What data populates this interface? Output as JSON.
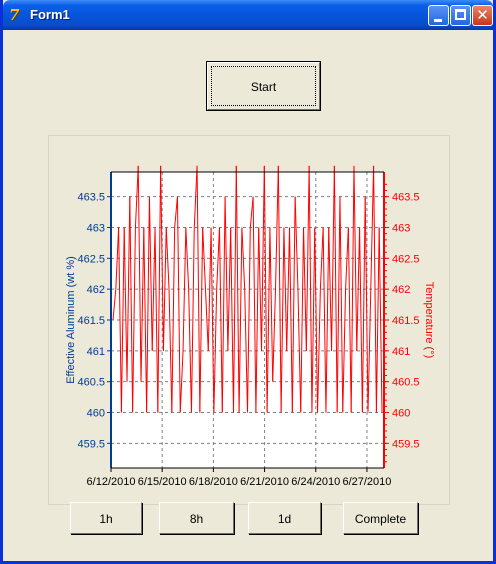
{
  "window": {
    "title": "Form1"
  },
  "titlebar": {
    "minimize": "minimize",
    "maximize": "maximize",
    "close": "close"
  },
  "start_button": {
    "label": "Start"
  },
  "range_buttons": [
    {
      "label": "1h"
    },
    {
      "label": "8h"
    },
    {
      "label": "1d"
    },
    {
      "label": "Complete"
    }
  ],
  "colors": {
    "left_axis": "#003c96",
    "right_axis": "#ff0000",
    "series": "#ff0000",
    "grid": "#808080"
  },
  "chart_data": {
    "type": "line",
    "title": "",
    "y_left_label": "Effective Aluminum (wt %)",
    "y_right_label": "Temperature (°)",
    "x_tick_labels": [
      "6/12/2010",
      "6/15/2010",
      "6/18/2010",
      "6/21/2010",
      "6/24/2010",
      "6/27/2010"
    ],
    "x_ticks": [
      "2010-06-12",
      "2010-06-15",
      "2010-06-18",
      "2010-06-21",
      "2010-06-24",
      "2010-06-27"
    ],
    "x_range": [
      "2010-06-12",
      "2010-06-28"
    ],
    "y_left_ticks": [
      "463.5",
      "463",
      "462.5",
      "462",
      "461.5",
      "461",
      "460.5",
      "460",
      "459.5"
    ],
    "y_right_ticks": [
      "463.5",
      "463",
      "462.5",
      "462",
      "461.5",
      "461",
      "460.5",
      "460",
      "459.5"
    ],
    "ylim": [
      459.1,
      463.9
    ],
    "grid": true,
    "series": [
      {
        "x": [
          "2010-06-12",
          "2010-06-12",
          "2010-06-12",
          "2010-06-12",
          "2010-06-12",
          "2010-06-13",
          "2010-06-13",
          "2010-06-13",
          "2010-06-13",
          "2010-06-13",
          "2010-06-13",
          "2010-06-13",
          "2010-06-14",
          "2010-06-14",
          "2010-06-14",
          "2010-06-14",
          "2010-06-14",
          "2010-06-14",
          "2010-06-15",
          "2010-06-15",
          "2010-06-15",
          "2010-06-15",
          "2010-06-15",
          "2010-06-15",
          "2010-06-16",
          "2010-06-16",
          "2010-06-16",
          "2010-06-16",
          "2010-06-16",
          "2010-06-16",
          "2010-06-16",
          "2010-06-17",
          "2010-06-17",
          "2010-06-17",
          "2010-06-17",
          "2010-06-17",
          "2010-06-17",
          "2010-06-18",
          "2010-06-18",
          "2010-06-18",
          "2010-06-18",
          "2010-06-18",
          "2010-06-18",
          "2010-06-19",
          "2010-06-19",
          "2010-06-19",
          "2010-06-19",
          "2010-06-19",
          "2010-06-19",
          "2010-06-20",
          "2010-06-20",
          "2010-06-20",
          "2010-06-20",
          "2010-06-20",
          "2010-06-20",
          "2010-06-21",
          "2010-06-21",
          "2010-06-21",
          "2010-06-21",
          "2010-06-21",
          "2010-06-21",
          "2010-06-22",
          "2010-06-22",
          "2010-06-22",
          "2010-06-22",
          "2010-06-22",
          "2010-06-22",
          "2010-06-23",
          "2010-06-23",
          "2010-06-23",
          "2010-06-23",
          "2010-06-23",
          "2010-06-23",
          "2010-06-24",
          "2010-06-24",
          "2010-06-24",
          "2010-06-24",
          "2010-06-24",
          "2010-06-24",
          "2010-06-25",
          "2010-06-25",
          "2010-06-25",
          "2010-06-25",
          "2010-06-25",
          "2010-06-25",
          "2010-06-26",
          "2010-06-26",
          "2010-06-26",
          "2010-06-26",
          "2010-06-26",
          "2010-06-26",
          "2010-06-27",
          "2010-06-27",
          "2010-06-27",
          "2010-06-27",
          "2010-06-27",
          "2010-06-28"
        ],
        "y": [
          461.5,
          462,
          463,
          460,
          463,
          460.5,
          463.5,
          460,
          463,
          464,
          460.5,
          463,
          460,
          463.5,
          461,
          463,
          460,
          464,
          461,
          463,
          462,
          460,
          463,
          463.5,
          460,
          461,
          463,
          462,
          460,
          463,
          464,
          460,
          463,
          462,
          461,
          463,
          460,
          462,
          463,
          460,
          463.5,
          461,
          463,
          460,
          464,
          460,
          463,
          462,
          460,
          463,
          463.5,
          460,
          463,
          461,
          464,
          460,
          463,
          460.5,
          462,
          464,
          460,
          463,
          461,
          463,
          460,
          463.5,
          462,
          460,
          463,
          461,
          464,
          460,
          463,
          460,
          462,
          463,
          460,
          463,
          461,
          464,
          460,
          463.5,
          460,
          462,
          463,
          460,
          464,
          461,
          463,
          460,
          463.5,
          460,
          462,
          464,
          460,
          463,
          460
        ]
      }
    ]
  }
}
